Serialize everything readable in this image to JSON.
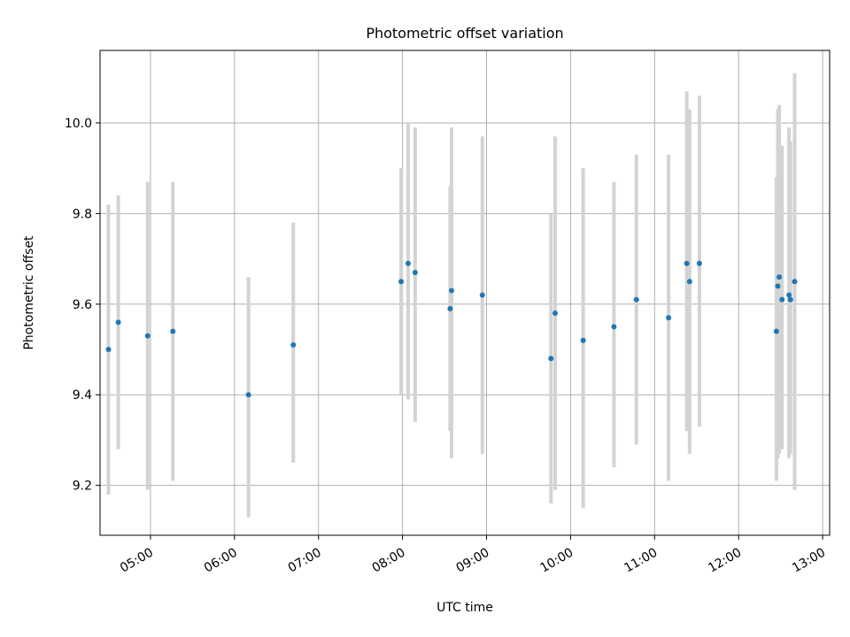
{
  "chart_data": {
    "type": "scatter",
    "title": "Photometric offset variation",
    "xlabel": "UTC time",
    "ylabel": "Photometric offset",
    "x_unit": "UTC time (HH:MM)",
    "xlim": [
      "04:24",
      "13:05"
    ],
    "ylim": [
      9.09,
      10.16
    ],
    "xticks": [
      "05:00",
      "06:00",
      "07:00",
      "08:00",
      "09:00",
      "10:00",
      "11:00",
      "12:00",
      "13:00"
    ],
    "yticks": [
      9.2,
      9.4,
      9.6,
      9.8,
      10.0
    ],
    "ytick_labels": [
      "9.2",
      "9.4",
      "9.6",
      "9.8",
      "10.0"
    ],
    "grid": true,
    "legend": "none",
    "point_color": "#1f77b4",
    "errorbar_color": "#d3d3d3",
    "series": [
      {
        "points": [
          {
            "x": "04:30",
            "y": 9.5,
            "ylow": 9.18,
            "yhigh": 9.82
          },
          {
            "x": "04:37",
            "y": 9.56,
            "ylow": 9.28,
            "yhigh": 9.84
          },
          {
            "x": "04:58",
            "y": 9.53,
            "ylow": 9.19,
            "yhigh": 9.87
          },
          {
            "x": "05:16",
            "y": 9.54,
            "ylow": 9.21,
            "yhigh": 9.87
          },
          {
            "x": "06:10",
            "y": 9.4,
            "ylow": 9.13,
            "yhigh": 9.66
          },
          {
            "x": "06:42",
            "y": 9.51,
            "ylow": 9.25,
            "yhigh": 9.78
          },
          {
            "x": "07:59",
            "y": 9.65,
            "ylow": 9.4,
            "yhigh": 9.9
          },
          {
            "x": "08:04",
            "y": 9.69,
            "ylow": 9.39,
            "yhigh": 10.0
          },
          {
            "x": "08:09",
            "y": 9.67,
            "ylow": 9.34,
            "yhigh": 9.99
          },
          {
            "x": "08:34",
            "y": 9.59,
            "ylow": 9.32,
            "yhigh": 9.86
          },
          {
            "x": "08:35",
            "y": 9.63,
            "ylow": 9.26,
            "yhigh": 9.99
          },
          {
            "x": "08:57",
            "y": 9.62,
            "ylow": 9.27,
            "yhigh": 9.97
          },
          {
            "x": "09:46",
            "y": 9.48,
            "ylow": 9.16,
            "yhigh": 9.8
          },
          {
            "x": "09:49",
            "y": 9.58,
            "ylow": 9.19,
            "yhigh": 9.97
          },
          {
            "x": "10:09",
            "y": 9.52,
            "ylow": 9.15,
            "yhigh": 9.9
          },
          {
            "x": "10:31",
            "y": 9.55,
            "ylow": 9.24,
            "yhigh": 9.87
          },
          {
            "x": "10:47",
            "y": 9.61,
            "ylow": 9.29,
            "yhigh": 9.93
          },
          {
            "x": "11:10",
            "y": 9.57,
            "ylow": 9.21,
            "yhigh": 9.93
          },
          {
            "x": "11:23",
            "y": 9.69,
            "ylow": 9.32,
            "yhigh": 10.07
          },
          {
            "x": "11:25",
            "y": 9.65,
            "ylow": 9.27,
            "yhigh": 10.03
          },
          {
            "x": "11:32",
            "y": 9.69,
            "ylow": 9.33,
            "yhigh": 10.06
          },
          {
            "x": "12:27",
            "y": 9.54,
            "ylow": 9.21,
            "yhigh": 9.88
          },
          {
            "x": "12:28",
            "y": 9.64,
            "ylow": 9.26,
            "yhigh": 10.03
          },
          {
            "x": "12:29",
            "y": 9.66,
            "ylow": 9.27,
            "yhigh": 10.04
          },
          {
            "x": "12:31",
            "y": 9.61,
            "ylow": 9.28,
            "yhigh": 9.95
          },
          {
            "x": "12:36",
            "y": 9.62,
            "ylow": 9.26,
            "yhigh": 9.99
          },
          {
            "x": "12:37",
            "y": 9.61,
            "ylow": 9.27,
            "yhigh": 9.96
          },
          {
            "x": "12:40",
            "y": 9.65,
            "ylow": 9.19,
            "yhigh": 10.11
          }
        ]
      }
    ]
  }
}
